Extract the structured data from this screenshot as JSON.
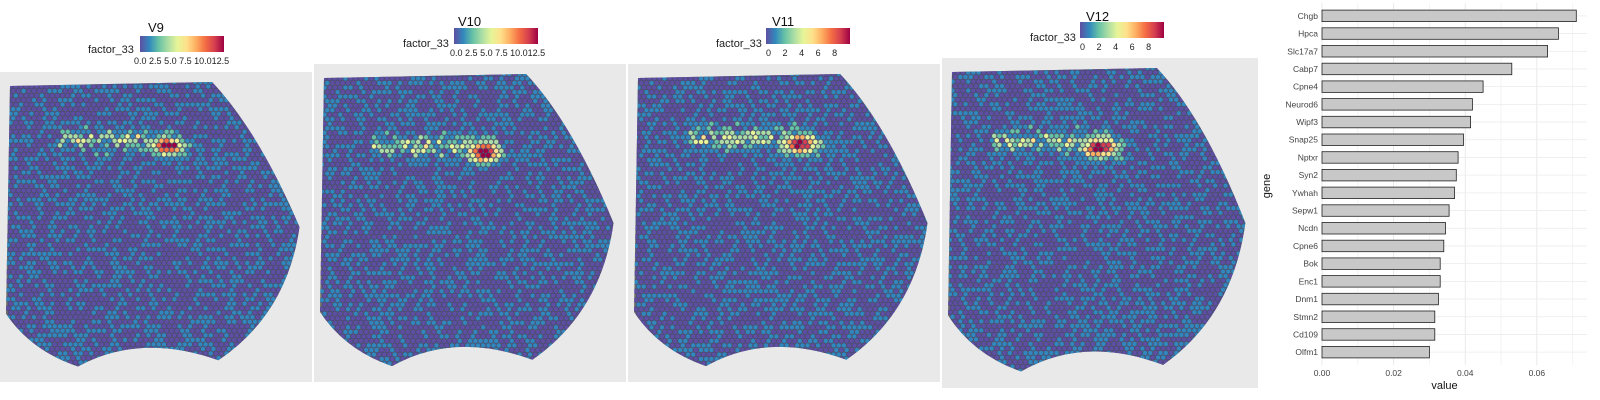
{
  "panels": [
    {
      "title": "V9",
      "legend_label": "factor_33",
      "ticks": [
        "0.0",
        "2.5",
        "5.0",
        "7.5",
        "10.0",
        "12.5"
      ]
    },
    {
      "title": "V10",
      "legend_label": "factor_33",
      "ticks": [
        "0.0",
        "2.5",
        "5.0",
        "7.5",
        "10.0",
        "12.5"
      ]
    },
    {
      "title": "V11",
      "legend_label": "factor_33",
      "ticks": [
        "0",
        "2",
        "4",
        "6",
        "8"
      ]
    },
    {
      "title": "V12",
      "legend_label": "factor_33",
      "ticks": [
        "0",
        "2",
        "4",
        "6",
        "8"
      ]
    }
  ],
  "colors": {
    "spectral": [
      "#5e4fa2",
      "#3288bd",
      "#66c2a5",
      "#abdda4",
      "#e6f598",
      "#fee08b",
      "#fdae61",
      "#f46d43",
      "#d53e4f",
      "#9e0142"
    ],
    "tissue_bg": "#3b3f8c",
    "bar_fill": "#c8c8c8",
    "bar_stroke": "#222222"
  },
  "chart_data": {
    "type": "bar",
    "orientation": "horizontal",
    "xlabel": "value",
    "ylabel": "gene",
    "categories": [
      "Chgb",
      "Hpca",
      "Slc17a7",
      "Cabp7",
      "Cpne4",
      "Neurod6",
      "Wipf3",
      "Snap25",
      "Nptxr",
      "Syn2",
      "Ywhah",
      "Sepw1",
      "Ncdn",
      "Cpne6",
      "Bok",
      "Enc1",
      "Dnm1",
      "Stmn2",
      "Cd109",
      "Olfm1"
    ],
    "values": [
      0.071,
      0.066,
      0.063,
      0.053,
      0.045,
      0.042,
      0.0415,
      0.0395,
      0.038,
      0.0375,
      0.037,
      0.0355,
      0.0345,
      0.034,
      0.033,
      0.033,
      0.0325,
      0.0315,
      0.0315,
      0.03
    ],
    "x_ticks": [
      "0.00",
      "0.02",
      "0.04",
      "0.06"
    ],
    "xlim": [
      0,
      0.074
    ],
    "grid": true
  }
}
